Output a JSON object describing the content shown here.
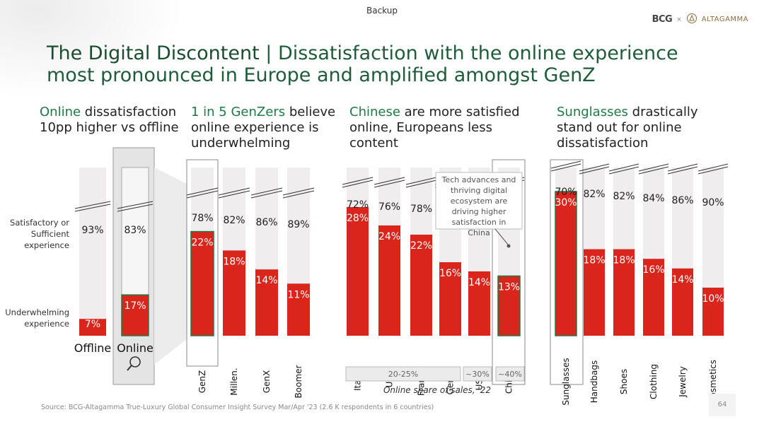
{
  "header": {
    "label": "Backup",
    "logo_bcg": "BCG",
    "logo_sep": "×",
    "logo_alta": "ALTAGAMMA"
  },
  "title": {
    "bold": "The Digital Discontent",
    "sep": " | ",
    "rest": "Dissatisfaction with the online experience most pronounced in Europe and amplified amongst GenZ"
  },
  "sections": [
    {
      "highlight": "Online",
      "rest": " dissatisfaction 10pp higher vs offline"
    },
    {
      "highlight": "1 in 5 GenZers",
      "rest": " believe online experience is underwhelming"
    },
    {
      "highlight": "Chinese",
      "rest": " are more satisfied online, Europeans less content"
    },
    {
      "highlight": "Sunglasses",
      "rest": " drastically stand out for online dissatisfaction"
    }
  ],
  "y_labels": {
    "top": "Satisfactory or Sufficient experience",
    "bottom": "Underwhelming experience"
  },
  "annotation": "Tech advances and thriving digital ecosystem are driving higher satisfaction in China",
  "share": {
    "groups": [
      "20-25%",
      "~30%",
      "~40%"
    ],
    "caption": "Online share of sales, '22"
  },
  "footer": "Source: BCG-Altagamma True-Luxury Global Consumer Insight Survey Mar/Apr '23 (2.6 K respondents in 6 countries)",
  "page_number": "64",
  "colors": {
    "red": "#d9251c",
    "grey": "#efeded",
    "green": "#1f7a45"
  },
  "chart_data": [
    {
      "type": "bar",
      "stacked": true,
      "categories": [
        "Offline",
        "Online"
      ],
      "series": [
        {
          "name": "Underwhelming experience",
          "values": [
            7,
            17
          ]
        },
        {
          "name": "Satisfactory or Sufficient experience",
          "values": [
            93,
            83
          ]
        }
      ],
      "unit": "%"
    },
    {
      "type": "bar",
      "stacked": true,
      "categories": [
        "GenZ",
        "Millen.",
        "GenX",
        "Boomer"
      ],
      "series": [
        {
          "name": "Underwhelming experience",
          "values": [
            22,
            18,
            14,
            11
          ]
        },
        {
          "name": "Satisfactory or Sufficient experience",
          "values": [
            78,
            82,
            86,
            89
          ]
        }
      ],
      "unit": "%"
    },
    {
      "type": "bar",
      "stacked": true,
      "categories": [
        "Italy",
        "UK",
        "France",
        "Germ.",
        "USA",
        "China"
      ],
      "series": [
        {
          "name": "Underwhelming experience",
          "values": [
            28,
            24,
            22,
            16,
            14,
            13
          ]
        },
        {
          "name": "Satisfactory or Sufficient experience",
          "values": [
            72,
            76,
            78,
            null,
            null,
            null
          ]
        }
      ],
      "unit": "%"
    },
    {
      "type": "bar",
      "stacked": true,
      "categories": [
        "Sunglasses",
        "Handbags",
        "Shoes",
        "Clothing",
        "Jewelry",
        "Cosmetics"
      ],
      "series": [
        {
          "name": "Underwhelming experience",
          "values": [
            30,
            18,
            18,
            16,
            14,
            10
          ]
        },
        {
          "name": "Satisfactory or Sufficient experience",
          "values": [
            70,
            82,
            82,
            84,
            86,
            90
          ]
        }
      ],
      "unit": "%"
    }
  ]
}
